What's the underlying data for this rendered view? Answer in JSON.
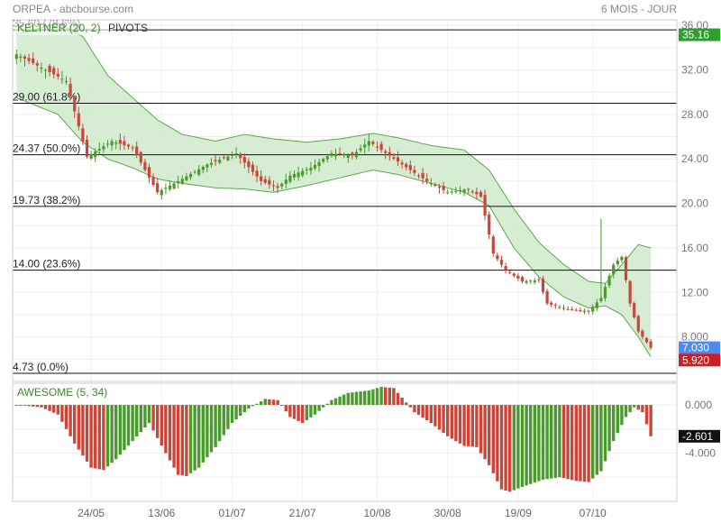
{
  "header": {
    "title": "ORPEA - abcbourse.com",
    "period": "6 MOIS - JOUR"
  },
  "legend": {
    "indicator": "KELTNER (20, 2)",
    "pivots": "PIVOTS"
  },
  "colors": {
    "up": "#4a9a2e",
    "down": "#c9473a",
    "band_fill": "#cfeacb",
    "band_line": "#5aa94b",
    "price_badge": "#4d8bf0",
    "last_badge": "#cc1f1f",
    "ref_badge": "#2e9e2e"
  },
  "price_axis": {
    "ticks": [
      "36.00",
      "32.00",
      "28.00",
      "24.00",
      "20.00",
      "16.00",
      "12.00",
      "8.000"
    ],
    "badges": {
      "ref": "35.16",
      "price": "7.030",
      "last": "5.920"
    }
  },
  "ao_panel": {
    "label": "AWESOME (5, 34)",
    "ticks": [
      "0.000",
      "-4.000"
    ],
    "badge": "-2.601"
  },
  "x_axis": {
    "labels": [
      "24/05",
      "13/06",
      "01/07",
      "21/07",
      "10/08",
      "30/08",
      "19/09",
      "07/10"
    ]
  },
  "chart_data": [
    {
      "type": "candlestick",
      "title": "ORPEA - abcbourse.com",
      "period": "6 MOIS - JOUR",
      "x_labels": [
        "24/05",
        "13/06",
        "01/07",
        "21/07",
        "10/08",
        "30/08",
        "19/09",
        "07/10"
      ],
      "ylim": [
        4.0,
        36.5
      ],
      "y_ticks": [
        36,
        32,
        28,
        24,
        20,
        16,
        12,
        8
      ],
      "last_price": 7.03,
      "last_low": 5.92,
      "reference_value": 35.16,
      "close_path": [
        [
          0,
          33.4
        ],
        [
          12,
          31.0
        ],
        [
          17,
          24.2
        ],
        [
          23,
          25.6
        ],
        [
          28,
          25.0
        ],
        [
          34,
          21.0
        ],
        [
          39,
          22.0
        ],
        [
          46,
          23.5
        ],
        [
          53,
          24.5
        ],
        [
          59,
          22.0
        ],
        [
          63,
          21.4
        ],
        [
          66,
          22.5
        ],
        [
          71,
          23.2
        ],
        [
          76,
          24.5
        ],
        [
          81,
          24.3
        ],
        [
          85,
          25.6
        ],
        [
          88,
          24.8
        ],
        [
          93,
          23.5
        ],
        [
          99,
          22.0
        ],
        [
          104,
          21.0
        ],
        [
          109,
          21.3
        ],
        [
          112,
          20.6
        ],
        [
          115,
          15.5
        ],
        [
          118,
          14.0
        ],
        [
          122,
          13.0
        ],
        [
          126,
          13.1
        ],
        [
          128,
          11.0
        ],
        [
          133,
          10.5
        ],
        [
          138,
          10.3
        ],
        [
          141,
          11.5
        ],
        [
          144,
          14.5
        ],
        [
          146,
          15.2
        ],
        [
          148,
          11.0
        ],
        [
          150,
          8.5
        ],
        [
          153,
          7.03
        ]
      ],
      "pivot_levels": [
        {
          "value": 35.6,
          "label": "35.60",
          "pct": "(78.6%)"
        },
        {
          "value": 29.0,
          "label": "29.00",
          "pct": "(61.8%)"
        },
        {
          "value": 24.37,
          "label": "24.37",
          "pct": "(50.0%)"
        },
        {
          "value": 19.73,
          "label": "19.73",
          "pct": "(38.2%)"
        },
        {
          "value": 14.0,
          "label": "14.00",
          "pct": "(23.6%)"
        },
        {
          "value": 4.73,
          "label": "4.73",
          "pct": "(0.0%)"
        }
      ],
      "keltner": {
        "name": "KELTNER (20, 2)",
        "upper_path": [
          [
            0,
            35.2
          ],
          [
            10,
            36.2
          ],
          [
            16,
            35.0
          ],
          [
            22,
            31.5
          ],
          [
            28,
            29.5
          ],
          [
            34,
            27.5
          ],
          [
            40,
            26.2
          ],
          [
            48,
            25.6
          ],
          [
            55,
            26.2
          ],
          [
            62,
            25.8
          ],
          [
            70,
            25.5
          ],
          [
            78,
            25.8
          ],
          [
            86,
            26.3
          ],
          [
            92,
            25.9
          ],
          [
            100,
            25.2
          ],
          [
            108,
            24.8
          ],
          [
            114,
            23.0
          ],
          [
            120,
            19.5
          ],
          [
            126,
            16.5
          ],
          [
            132,
            14.5
          ],
          [
            138,
            13.0
          ],
          [
            142,
            12.8
          ],
          [
            146,
            14.5
          ],
          [
            150,
            16.3
          ],
          [
            153,
            16.0
          ]
        ],
        "lower_path": [
          [
            0,
            29.5
          ],
          [
            10,
            28.0
          ],
          [
            16,
            25.5
          ],
          [
            22,
            24.0
          ],
          [
            28,
            23.2
          ],
          [
            34,
            22.2
          ],
          [
            40,
            21.8
          ],
          [
            48,
            21.4
          ],
          [
            55,
            21.3
          ],
          [
            62,
            21.0
          ],
          [
            70,
            21.6
          ],
          [
            78,
            22.3
          ],
          [
            86,
            23.0
          ],
          [
            92,
            22.6
          ],
          [
            100,
            21.8
          ],
          [
            108,
            21.0
          ],
          [
            114,
            19.8
          ],
          [
            120,
            16.0
          ],
          [
            126,
            13.4
          ],
          [
            132,
            11.6
          ],
          [
            138,
            10.6
          ],
          [
            142,
            10.8
          ],
          [
            146,
            10.0
          ],
          [
            150,
            8.0
          ],
          [
            153,
            6.2
          ]
        ]
      }
    },
    {
      "type": "bar",
      "name": "AWESOME (5, 34)",
      "ylim": [
        -8.0,
        1.8
      ],
      "y_ticks": [
        0,
        -4
      ],
      "last_value": -2.601,
      "ao_path": [
        [
          0,
          0.0
        ],
        [
          6,
          -0.2
        ],
        [
          10,
          -0.8
        ],
        [
          14,
          -3.2
        ],
        [
          18,
          -5.2
        ],
        [
          21,
          -5.4
        ],
        [
          24,
          -4.5
        ],
        [
          28,
          -3.0
        ],
        [
          32,
          -1.5
        ],
        [
          36,
          -4.0
        ],
        [
          39,
          -5.8
        ],
        [
          41,
          -5.9
        ],
        [
          44,
          -5.2
        ],
        [
          48,
          -3.5
        ],
        [
          52,
          -1.5
        ],
        [
          56,
          -0.3
        ],
        [
          60,
          0.5
        ],
        [
          63,
          0.4
        ],
        [
          66,
          -1.0
        ],
        [
          69,
          -1.5
        ],
        [
          72,
          -0.8
        ],
        [
          76,
          0.4
        ],
        [
          80,
          1.0
        ],
        [
          85,
          1.2
        ],
        [
          88,
          1.5
        ],
        [
          91,
          1.4
        ],
        [
          93,
          0.6
        ],
        [
          96,
          -0.6
        ],
        [
          100,
          -1.5
        ],
        [
          104,
          -2.6
        ],
        [
          108,
          -3.4
        ],
        [
          111,
          -3.5
        ],
        [
          114,
          -5.0
        ],
        [
          117,
          -7.0
        ],
        [
          119,
          -7.2
        ],
        [
          122,
          -6.8
        ],
        [
          127,
          -6.2
        ],
        [
          131,
          -6.0
        ],
        [
          135,
          -6.3
        ],
        [
          138,
          -6.4
        ],
        [
          141,
          -5.5
        ],
        [
          144,
          -3.0
        ],
        [
          147,
          -1.0
        ],
        [
          149,
          -0.2
        ],
        [
          151,
          -0.6
        ],
        [
          153,
          -2.6
        ]
      ]
    }
  ]
}
